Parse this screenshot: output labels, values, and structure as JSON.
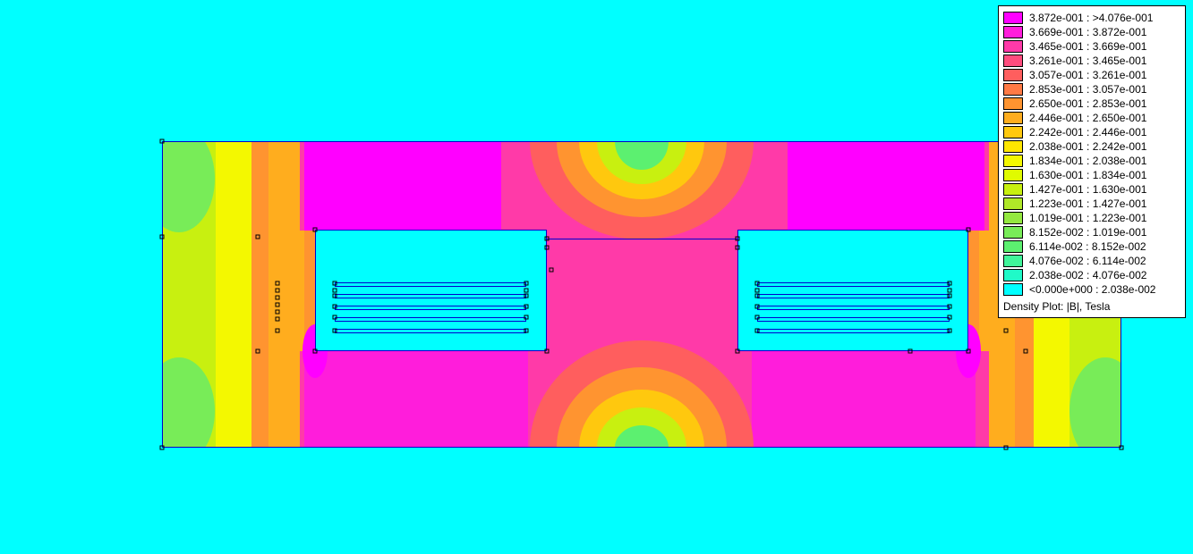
{
  "plot": {
    "background": "#00ffff",
    "outline_color": "#0000cc",
    "title": "Density Plot: |B|, Tesla"
  },
  "legend": {
    "title": "Density Plot: |B|, Tesla",
    "entries": [
      {
        "label": "3.872e-001 : >4.076e-001",
        "color": "#ff00ff"
      },
      {
        "label": "3.669e-001 : 3.872e-001",
        "color": "#ff1ddb"
      },
      {
        "label": "3.465e-001 : 3.669e-001",
        "color": "#ff3aa8"
      },
      {
        "label": "3.261e-001 : 3.465e-001",
        "color": "#ff4c7e"
      },
      {
        "label": "3.057e-001 : 3.261e-001",
        "color": "#ff5e5e"
      },
      {
        "label": "2.853e-001 : 3.057e-001",
        "color": "#ff7a45"
      },
      {
        "label": "2.650e-001 : 2.853e-001",
        "color": "#ff9430"
      },
      {
        "label": "2.446e-001 : 2.650e-001",
        "color": "#ffad1e"
      },
      {
        "label": "2.242e-001 : 2.446e-001",
        "color": "#ffc80e"
      },
      {
        "label": "2.038e-001 : 2.242e-001",
        "color": "#ffe600"
      },
      {
        "label": "1.834e-001 : 2.038e-001",
        "color": "#f4f800"
      },
      {
        "label": "1.630e-001 : 1.834e-001",
        "color": "#e0fb00"
      },
      {
        "label": "1.427e-001 : 1.630e-001",
        "color": "#c8f010"
      },
      {
        "label": "1.223e-001 : 1.427e-001",
        "color": "#b0e828"
      },
      {
        "label": "1.019e-001 : 1.223e-001",
        "color": "#94e840"
      },
      {
        "label": "8.152e-002 : 1.019e-001",
        "color": "#78ec58"
      },
      {
        "label": "6.114e-002 : 8.152e-002",
        "color": "#5cf070"
      },
      {
        "label": "4.076e-002 : 6.114e-002",
        "color": "#40f59a"
      },
      {
        "label": "2.038e-002 : 4.076e-002",
        "color": "#20fac8"
      },
      {
        "label": "<0.000e+000 : 2.038e-002",
        "color": "#00ffff"
      }
    ]
  }
}
